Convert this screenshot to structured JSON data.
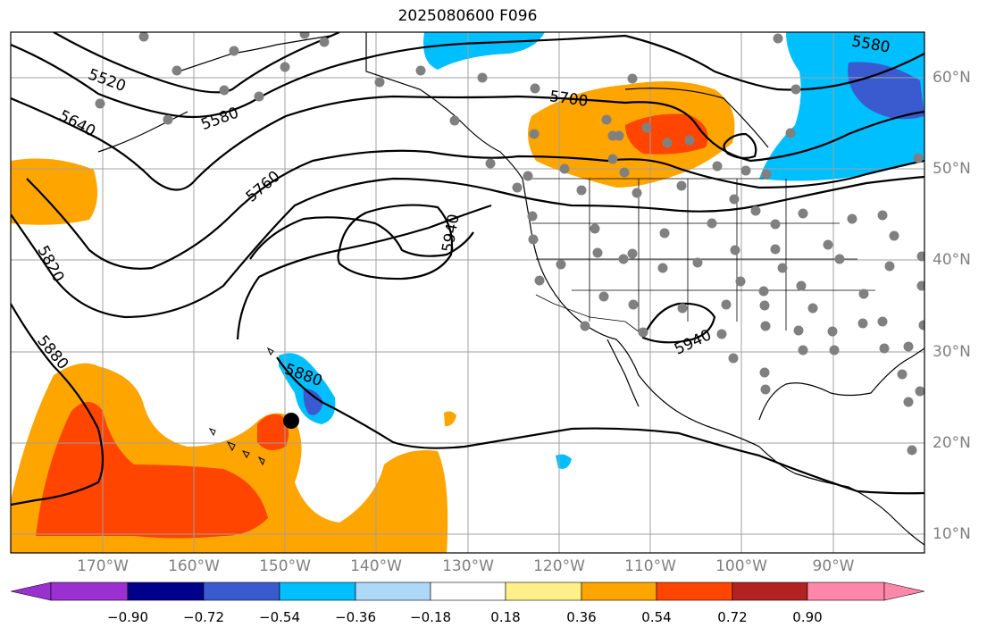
{
  "title": "2025080600 F096",
  "map": {
    "lon_labels": [
      "170°W",
      "160°W",
      "150°W",
      "140°W",
      "130°W",
      "120°W",
      "110°W",
      "100°W",
      "90°W"
    ],
    "lat_labels": [
      "60°N",
      "50°N",
      "40°N",
      "30°N",
      "20°N",
      "10°N"
    ],
    "contour_labels": [
      "5520",
      "5580",
      "5640",
      "5580",
      "5700",
      "5760",
      "5820",
      "5880",
      "5880",
      "5940",
      "5940"
    ],
    "contour_color": "#000000",
    "marker_color": "#000000",
    "station_color": "#808080"
  },
  "colorbar": {
    "tick_labels": [
      "−0.90",
      "−0.72",
      "−0.54",
      "−0.36",
      "−0.18",
      "0.18",
      "0.36",
      "0.54",
      "0.72",
      "0.90"
    ],
    "colors": [
      "#9b30d0",
      "#00008b",
      "#3a5bd0",
      "#00bfff",
      "#add8f7",
      "#ffffff",
      "#fff08a",
      "#ffa500",
      "#ff4500",
      "#b22222",
      "#ff88aa"
    ]
  }
}
